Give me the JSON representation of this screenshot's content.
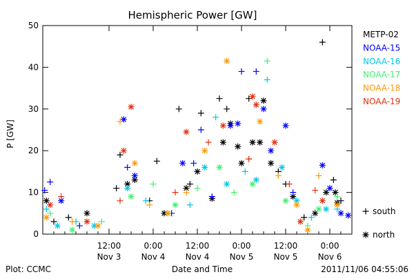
{
  "chart_data": {
    "type": "scatter",
    "title": "Hemispheric Power [GW]",
    "ylabel": "P [GW]",
    "xlabel": "Date and Time",
    "ylim": [
      0,
      50
    ],
    "xlim": [
      "2011-11-02 18:00",
      "2011-11-06 06:00"
    ],
    "y_ticks": [
      0,
      10,
      20,
      30,
      40,
      50
    ],
    "x_ticks": [
      {
        "time": "2011-11-03 12:00",
        "line1": "12:00",
        "line2": "Nov 3"
      },
      {
        "time": "2011-11-04 00:00",
        "line1": "0:00",
        "line2": "Nov 4"
      },
      {
        "time": "2011-11-04 12:00",
        "line1": "12:00",
        "line2": "Nov 4"
      },
      {
        "time": "2011-11-05 00:00",
        "line1": "0:00",
        "line2": "Nov 5"
      },
      {
        "time": "2011-11-05 12:00",
        "line1": "12:00",
        "line2": "Nov 5"
      },
      {
        "time": "2011-11-06 00:00",
        "line1": "0:00",
        "line2": "Nov 6"
      }
    ],
    "grid": false,
    "legend_position": "right",
    "marker_legend": [
      {
        "symbol": "+",
        "label": "south"
      },
      {
        "symbol": "*",
        "label": "north"
      }
    ],
    "series": [
      {
        "name": "METP-02",
        "color": "#000000",
        "points": [
          {
            "t": "2011-11-02 19:00",
            "y": 8,
            "m": "*"
          },
          {
            "t": "2011-11-02 21:00",
            "y": 3,
            "m": "+"
          },
          {
            "t": "2011-11-03 01:00",
            "y": 4,
            "m": "+"
          },
          {
            "t": "2011-11-03 06:00",
            "y": 5,
            "m": "*"
          },
          {
            "t": "2011-11-03 14:00",
            "y": 11,
            "m": "+"
          },
          {
            "t": "2011-11-03 15:00",
            "y": 19,
            "m": "+"
          },
          {
            "t": "2011-11-03 17:00",
            "y": 12,
            "m": "*"
          },
          {
            "t": "2011-11-03 19:00",
            "y": 13,
            "m": "*"
          },
          {
            "t": "2011-11-03 23:00",
            "y": 8,
            "m": "+"
          },
          {
            "t": "2011-11-04 01:00",
            "y": 17.5,
            "m": "+"
          },
          {
            "t": "2011-11-04 03:00",
            "y": 5,
            "m": "*"
          },
          {
            "t": "2011-11-04 07:00",
            "y": 30,
            "m": "+"
          },
          {
            "t": "2011-11-04 09:00",
            "y": 11,
            "m": "*"
          },
          {
            "t": "2011-11-04 10:00",
            "y": 12,
            "m": "+"
          },
          {
            "t": "2011-11-04 12:00",
            "y": 15,
            "m": "*"
          },
          {
            "t": "2011-11-04 13:00",
            "y": 29,
            "m": "+"
          },
          {
            "t": "2011-11-04 16:00",
            "y": 8.5,
            "m": "*"
          },
          {
            "t": "2011-11-04 18:00",
            "y": 32.5,
            "m": "+"
          },
          {
            "t": "2011-11-04 19:00",
            "y": 22,
            "m": "*"
          },
          {
            "t": "2011-11-04 20:00",
            "y": 30,
            "m": "+"
          },
          {
            "t": "2011-11-04 21:00",
            "y": 26.5,
            "m": "*"
          },
          {
            "t": "2011-11-04 23:00",
            "y": 21,
            "m": "*"
          },
          {
            "t": "2011-11-05 00:00",
            "y": 17,
            "m": "*"
          },
          {
            "t": "2011-11-05 02:00",
            "y": 32.5,
            "m": "+"
          },
          {
            "t": "2011-11-05 03:00",
            "y": 22,
            "m": "*"
          },
          {
            "t": "2011-11-05 05:00",
            "y": 22,
            "m": "*"
          },
          {
            "t": "2011-11-05 06:00",
            "y": 32,
            "m": "*"
          },
          {
            "t": "2011-11-05 08:00",
            "y": 17,
            "m": "*"
          },
          {
            "t": "2011-11-05 10:00",
            "y": 15,
            "m": "+"
          },
          {
            "t": "2011-11-05 12:00",
            "y": 12,
            "m": "+"
          },
          {
            "t": "2011-11-05 14:00",
            "y": 9,
            "m": "*"
          },
          {
            "t": "2011-11-05 17:00",
            "y": 4,
            "m": "+"
          },
          {
            "t": "2011-11-05 20:00",
            "y": 5,
            "m": "*"
          },
          {
            "t": "2011-11-05 22:00",
            "y": 46,
            "m": "+"
          },
          {
            "t": "2011-11-05 23:00",
            "y": 10,
            "m": "*"
          },
          {
            "t": "2011-11-06 01:00",
            "y": 13,
            "m": "+"
          },
          {
            "t": "2011-11-06 01:30",
            "y": 10,
            "m": "*"
          },
          {
            "t": "2011-11-06 02:00",
            "y": 7.5,
            "m": "*"
          },
          {
            "t": "2011-11-06 03:00",
            "y": 8,
            "m": "+"
          }
        ]
      },
      {
        "name": "NOAA-15",
        "color": "#0000ff",
        "points": [
          {
            "t": "2011-11-02 18:30",
            "y": 10.5,
            "m": "+"
          },
          {
            "t": "2011-11-02 20:00",
            "y": 12.5,
            "m": "+"
          },
          {
            "t": "2011-11-02 23:00",
            "y": 8,
            "m": "*"
          },
          {
            "t": "2011-11-03 04:00",
            "y": 2,
            "m": "+"
          },
          {
            "t": "2011-11-03 16:00",
            "y": 27.5,
            "m": "*"
          },
          {
            "t": "2011-11-03 17:00",
            "y": 16,
            "m": "+"
          },
          {
            "t": "2011-11-03 19:00",
            "y": 14,
            "m": "*"
          },
          {
            "t": "2011-11-04 05:00",
            "y": 5,
            "m": "+"
          },
          {
            "t": "2011-11-04 08:00",
            "y": 17,
            "m": "*"
          },
          {
            "t": "2011-11-04 11:00",
            "y": 17,
            "m": "+"
          },
          {
            "t": "2011-11-04 13:00",
            "y": 25,
            "m": "+"
          },
          {
            "t": "2011-11-04 16:00",
            "y": 9,
            "m": "+"
          },
          {
            "t": "2011-11-04 21:00",
            "y": 26,
            "m": "*"
          },
          {
            "t": "2011-11-04 23:00",
            "y": 26.5,
            "m": "*"
          },
          {
            "t": "2011-11-05 00:00",
            "y": 39,
            "m": "+"
          },
          {
            "t": "2011-11-05 04:00",
            "y": 39,
            "m": "+"
          },
          {
            "t": "2011-11-05 06:00",
            "y": 30,
            "m": "*"
          },
          {
            "t": "2011-11-05 08:00",
            "y": 20,
            "m": "*"
          },
          {
            "t": "2011-11-05 12:00",
            "y": 26,
            "m": "*"
          },
          {
            "t": "2011-11-05 14:00",
            "y": 10,
            "m": "+"
          },
          {
            "t": "2011-11-05 22:00",
            "y": 16.5,
            "m": "*"
          },
          {
            "t": "2011-11-06 00:00",
            "y": 11,
            "m": "*"
          },
          {
            "t": "2011-11-06 03:00",
            "y": 5,
            "m": "*"
          },
          {
            "t": "2011-11-06 05:00",
            "y": 4.5,
            "m": "*"
          }
        ]
      },
      {
        "name": "NOAA-16",
        "color": "#00c8e6",
        "points": [
          {
            "t": "2011-11-02 19:00",
            "y": 6,
            "m": "+"
          },
          {
            "t": "2011-11-02 22:00",
            "y": 2,
            "m": "*"
          },
          {
            "t": "2011-11-03 03:00",
            "y": 3,
            "m": "+"
          },
          {
            "t": "2011-11-03 08:00",
            "y": 2,
            "m": "*"
          },
          {
            "t": "2011-11-03 17:00",
            "y": 11,
            "m": "*"
          },
          {
            "t": "2011-11-03 22:00",
            "y": 8,
            "m": "+"
          },
          {
            "t": "2011-11-04 04:00",
            "y": 5,
            "m": "*"
          },
          {
            "t": "2011-11-04 10:00",
            "y": 7,
            "m": "+"
          },
          {
            "t": "2011-11-04 14:00",
            "y": 16,
            "m": "*"
          },
          {
            "t": "2011-11-04 17:00",
            "y": 28,
            "m": "+"
          },
          {
            "t": "2011-11-04 20:00",
            "y": 12,
            "m": "*"
          },
          {
            "t": "2011-11-05 01:00",
            "y": 15,
            "m": "+"
          },
          {
            "t": "2011-11-05 04:00",
            "y": 13,
            "m": "*"
          },
          {
            "t": "2011-11-05 07:00",
            "y": 37,
            "m": "+"
          },
          {
            "t": "2011-11-05 11:00",
            "y": 16,
            "m": "*"
          },
          {
            "t": "2011-11-05 15:00",
            "y": 8,
            "m": "*"
          },
          {
            "t": "2011-11-05 19:00",
            "y": 4,
            "m": "+"
          },
          {
            "t": "2011-11-05 23:00",
            "y": 6,
            "m": "*"
          },
          {
            "t": "2011-11-06 02:00",
            "y": 6,
            "m": "+"
          }
        ]
      },
      {
        "name": "NOAA-17",
        "color": "#40f070",
        "points": [
          {
            "t": "2011-11-02 20:00",
            "y": 5,
            "m": "+"
          },
          {
            "t": "2011-11-03 02:00",
            "y": 1,
            "m": "*"
          },
          {
            "t": "2011-11-03 10:00",
            "y": 3,
            "m": "+"
          },
          {
            "t": "2011-11-03 18:00",
            "y": 9,
            "m": "*"
          },
          {
            "t": "2011-11-04 00:00",
            "y": 12,
            "m": "+"
          },
          {
            "t": "2011-11-04 06:00",
            "y": 7,
            "m": "*"
          },
          {
            "t": "2011-11-04 12:00",
            "y": 11,
            "m": "+"
          },
          {
            "t": "2011-11-04 18:00",
            "y": 16,
            "m": "*"
          },
          {
            "t": "2011-11-04 22:00",
            "y": 10,
            "m": "+"
          },
          {
            "t": "2011-11-05 03:00",
            "y": 12,
            "m": "*"
          },
          {
            "t": "2011-11-05 07:00",
            "y": 41.5,
            "m": "+"
          },
          {
            "t": "2011-11-05 12:00",
            "y": 8,
            "m": "*"
          },
          {
            "t": "2011-11-05 18:00",
            "y": 2,
            "m": "+"
          },
          {
            "t": "2011-11-05 21:00",
            "y": 6,
            "m": "*"
          },
          {
            "t": "2011-11-06 02:00",
            "y": 9,
            "m": "+"
          }
        ]
      },
      {
        "name": "NOAA-18",
        "color": "#ff9900",
        "points": [
          {
            "t": "2011-11-02 19:00",
            "y": 4,
            "m": "*"
          },
          {
            "t": "2011-11-03 02:00",
            "y": 3,
            "m": "+"
          },
          {
            "t": "2011-11-03 09:00",
            "y": 2,
            "m": "*"
          },
          {
            "t": "2011-11-03 15:00",
            "y": 27,
            "m": "+"
          },
          {
            "t": "2011-11-03 19:00",
            "y": 17,
            "m": "*"
          },
          {
            "t": "2011-11-03 23:00",
            "y": 7,
            "m": "+"
          },
          {
            "t": "2011-11-04 04:00",
            "y": 5,
            "m": "*"
          },
          {
            "t": "2011-11-04 09:00",
            "y": 10,
            "m": "+"
          },
          {
            "t": "2011-11-04 14:00",
            "y": 20,
            "m": "*"
          },
          {
            "t": "2011-11-04 20:00",
            "y": 41.5,
            "m": "*"
          },
          {
            "t": "2011-11-05 02:00",
            "y": 18,
            "m": "+"
          },
          {
            "t": "2011-11-05 05:00",
            "y": 27,
            "m": "*"
          },
          {
            "t": "2011-11-05 10:00",
            "y": 14,
            "m": "+"
          },
          {
            "t": "2011-11-05 15:00",
            "y": 7,
            "m": "*"
          },
          {
            "t": "2011-11-05 18:00",
            "y": 1,
            "m": "*"
          },
          {
            "t": "2011-11-05 21:00",
            "y": 14,
            "m": "+"
          },
          {
            "t": "2011-11-06 02:00",
            "y": 7,
            "m": "*"
          }
        ]
      },
      {
        "name": "NOAA-19",
        "color": "#e03010",
        "points": [
          {
            "t": "2011-11-02 20:00",
            "y": 7,
            "m": "*"
          },
          {
            "t": "2011-11-02 23:00",
            "y": 9,
            "m": "+"
          },
          {
            "t": "2011-11-03 06:00",
            "y": 3,
            "m": "*"
          },
          {
            "t": "2011-11-03 15:00",
            "y": 8,
            "m": "+"
          },
          {
            "t": "2011-11-03 16:00",
            "y": 20,
            "m": "*"
          },
          {
            "t": "2011-11-03 18:00",
            "y": 30.5,
            "m": "*"
          },
          {
            "t": "2011-11-04 06:00",
            "y": 10,
            "m": "+"
          },
          {
            "t": "2011-11-04 09:00",
            "y": 24.5,
            "m": "*"
          },
          {
            "t": "2011-11-04 15:00",
            "y": 22,
            "m": "+"
          },
          {
            "t": "2011-11-04 19:00",
            "y": 26,
            "m": "*"
          },
          {
            "t": "2011-11-05 02:00",
            "y": 18,
            "m": "+"
          },
          {
            "t": "2011-11-05 03:00",
            "y": 33,
            "m": "*"
          },
          {
            "t": "2011-11-05 04:00",
            "y": 31,
            "m": "*"
          },
          {
            "t": "2011-11-05 09:00",
            "y": 22,
            "m": "*"
          },
          {
            "t": "2011-11-05 13:00",
            "y": 12,
            "m": "+"
          },
          {
            "t": "2011-11-05 16:00",
            "y": 3,
            "m": "*"
          },
          {
            "t": "2011-11-05 20:00",
            "y": 10.5,
            "m": "+"
          },
          {
            "t": "2011-11-05 22:00",
            "y": 8,
            "m": "*"
          }
        ]
      }
    ]
  },
  "footer": {
    "source": "Plot: CCMC",
    "timestamp": "2011/11/06 04:55:06"
  }
}
